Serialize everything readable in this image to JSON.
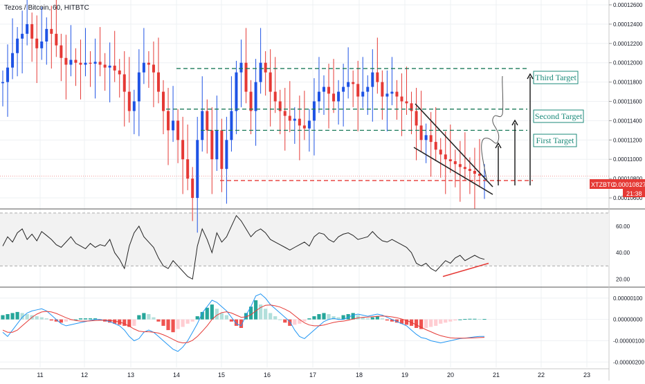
{
  "header": {
    "symbol_line": "Tezos / Bitcoin, 60, HITBTC"
  },
  "price_tag": {
    "symbol": "XTZBTC",
    "price": "0.00010827",
    "countdown": "21:38"
  },
  "annotations": {
    "first": "First Target",
    "second": "Second Target",
    "third": "Third Target"
  },
  "chart_data": [
    {
      "type": "candlestick",
      "pane": "price",
      "title": "Tezos / Bitcoin, 60, HITBTC",
      "x_ticks": [
        "11",
        "12",
        "13",
        "14",
        "15",
        "16",
        "17",
        "18",
        "19",
        "20",
        "21",
        "22",
        "23"
      ],
      "y_ticks": [
        "0.00012600",
        "0.00012400",
        "0.00012200",
        "0.00012000",
        "0.00011800",
        "0.00011600",
        "0.00011400",
        "0.00011200",
        "0.00011000",
        "0.00010800",
        "0.00010600"
      ],
      "ylim": [
        0.000105,
        0.0001265
      ],
      "last_price": 0.00010827,
      "levels": {
        "first_target": 0.000113,
        "second_target": 0.0001152,
        "third_target": 0.0001194,
        "support": 0.0001078
      },
      "path_close": [
        0.000118,
        0.0001195,
        0.000121,
        0.0001225,
        0.000123,
        0.000124,
        0.0001225,
        0.0001215,
        0.0001222,
        0.0001235,
        0.000123,
        0.0001218,
        0.0001205,
        0.0001198,
        0.0001203,
        0.00012,
        0.0001198,
        0.00012,
        0.0001199,
        0.0001201,
        0.0001198,
        0.0001195,
        0.0001197,
        0.0001192,
        0.0001188,
        0.000117,
        0.000115,
        0.000116,
        0.000119,
        0.00012,
        0.0001198,
        0.000119,
        0.000117,
        0.000115,
        0.000113,
        0.000114,
        0.000112,
        0.00011,
        0.000108,
        0.000106,
        0.000112,
        0.000115,
        0.000113,
        0.00011,
        0.000113,
        0.000109,
        0.000112,
        0.000115,
        0.000119,
        0.00012,
        0.000117,
        0.000115,
        0.000118,
        0.00012,
        0.000119,
        0.000117,
        0.000116,
        0.000115,
        0.0001145,
        0.000114,
        0.0001142,
        0.0001135,
        0.0001132,
        0.000114,
        0.000116,
        0.000117,
        0.0001175,
        0.0001168,
        0.000116,
        0.000117,
        0.0001175,
        0.000118,
        0.0001178,
        0.0001165,
        0.000117,
        0.0001175,
        0.000119,
        0.000118,
        0.0001165,
        0.0001168,
        0.000117,
        0.0001165,
        0.000116,
        0.0001158,
        0.000115,
        0.0001135,
        0.000112,
        0.0001125,
        0.0001118,
        0.000111,
        0.0001105,
        0.00011,
        0.0001098,
        0.0001095,
        0.0001092,
        0.000109,
        0.0001088,
        0.0001085,
        0.0001083,
        0.0001083
      ]
    },
    {
      "type": "line",
      "pane": "rsi",
      "y_ticks": [
        "60.00",
        "40.00",
        "20.00"
      ],
      "ylim": [
        15,
        72
      ],
      "bands": [
        70,
        30
      ],
      "values": [
        45,
        52,
        48,
        55,
        58,
        50,
        54,
        49,
        56,
        53,
        50,
        46,
        44,
        48,
        52,
        47,
        45,
        43,
        47,
        44,
        46,
        45,
        50,
        40,
        35,
        28,
        45,
        55,
        60,
        52,
        48,
        44,
        36,
        30,
        28,
        34,
        30,
        26,
        22,
        20,
        45,
        58,
        50,
        40,
        55,
        48,
        52,
        60,
        68,
        64,
        58,
        52,
        56,
        58,
        55,
        50,
        48,
        46,
        44,
        42,
        44,
        46,
        48,
        45,
        52,
        55,
        54,
        50,
        48,
        52,
        54,
        55,
        53,
        50,
        51,
        52,
        56,
        52,
        49,
        48,
        50,
        48,
        46,
        44,
        40,
        32,
        30,
        32,
        28,
        26,
        30,
        34,
        32,
        36,
        38,
        34,
        36,
        38,
        36,
        35
      ]
    },
    {
      "type": "histogram",
      "pane": "macd",
      "y_ticks": [
        "0.00000100",
        "0.00000000",
        "-0.00000100",
        "-0.00000200"
      ],
      "ylim": [
        -2.25e-06,
        1.45e-06
      ],
      "histogram": [
        0.2,
        0.25,
        0.3,
        0.35,
        0.3,
        0.25,
        0.2,
        0.15,
        0.1,
        0.05,
        -0.05,
        -0.1,
        -0.15,
        -0.1,
        -0.05,
        0.0,
        0.05,
        0.05,
        0.05,
        0.05,
        -0.05,
        -0.1,
        -0.15,
        -0.2,
        -0.25,
        -0.3,
        -0.35,
        -0.3,
        0.2,
        0.3,
        0.25,
        0.1,
        -0.1,
        -0.3,
        -0.5,
        -0.6,
        -0.45,
        -0.35,
        -0.2,
        -0.1,
        0.15,
        0.35,
        0.55,
        0.7,
        0.5,
        0.3,
        0.2,
        -0.1,
        -0.3,
        -0.4,
        0.3,
        0.6,
        0.9,
        0.7,
        0.5,
        0.3,
        0.15,
        0.0,
        -0.15,
        -0.3,
        -0.25,
        -0.2,
        -0.1,
        0.05,
        0.15,
        0.25,
        0.3,
        0.25,
        0.15,
        0.1,
        0.2,
        0.25,
        0.3,
        0.2,
        0.1,
        0.05,
        0.1,
        0.15,
        0.05,
        -0.05,
        -0.1,
        -0.15,
        -0.2,
        -0.25,
        -0.3,
        -0.4,
        -0.45,
        -0.4,
        -0.35,
        -0.3,
        -0.2,
        -0.15,
        -0.1,
        -0.05,
        0.0,
        0.02,
        0.03,
        0.03,
        0.02,
        0.02
      ],
      "histogram_scale": 1e-06,
      "macd": [
        -0.6,
        -0.8,
        -0.5,
        -0.2,
        0.1,
        0.3,
        0.4,
        0.45,
        0.5,
        0.4,
        0.2,
        0.0,
        -0.2,
        -0.3,
        -0.25,
        -0.2,
        -0.15,
        -0.1,
        -0.05,
        0.0,
        0.0,
        -0.05,
        -0.1,
        -0.2,
        -0.3,
        -0.5,
        -0.8,
        -1.0,
        -0.9,
        -0.6,
        -0.5,
        -0.6,
        -0.8,
        -1.0,
        -1.2,
        -1.4,
        -1.5,
        -1.3,
        -1.0,
        -0.6,
        -0.2,
        0.3,
        0.6,
        0.9,
        0.8,
        0.6,
        0.4,
        0.1,
        -0.2,
        -0.3,
        0.2,
        0.6,
        1.1,
        1.2,
        1.0,
        0.7,
        0.5,
        0.3,
        0.1,
        -0.1,
        -0.5,
        -0.8,
        -0.9,
        -0.7,
        -0.5,
        -0.3,
        -0.1,
        0.0,
        0.05,
        0.0,
        0.0,
        0.1,
        0.2,
        0.25,
        0.2,
        0.15,
        0.2,
        0.25,
        0.2,
        0.1,
        0.0,
        -0.1,
        -0.2,
        -0.3,
        -0.5,
        -0.7,
        -0.85,
        -0.9,
        -1.0,
        -1.05,
        -1.1,
        -1.05,
        -1.0,
        -0.95,
        -0.9,
        -0.88,
        -0.85,
        -0.82,
        -0.8,
        -0.8
      ],
      "signal": [
        -0.5,
        -0.6,
        -0.6,
        -0.5,
        -0.3,
        -0.1,
        0.1,
        0.25,
        0.35,
        0.38,
        0.35,
        0.28,
        0.18,
        0.08,
        0.0,
        -0.05,
        -0.08,
        -0.08,
        -0.07,
        -0.05,
        -0.04,
        -0.04,
        -0.05,
        -0.08,
        -0.12,
        -0.2,
        -0.32,
        -0.45,
        -0.55,
        -0.58,
        -0.58,
        -0.6,
        -0.64,
        -0.72,
        -0.82,
        -0.94,
        -1.05,
        -1.1,
        -1.08,
        -0.98,
        -0.8,
        -0.56,
        -0.3,
        0.0,
        0.2,
        0.32,
        0.36,
        0.3,
        0.2,
        0.1,
        0.12,
        0.22,
        0.4,
        0.56,
        0.66,
        0.68,
        0.64,
        0.58,
        0.48,
        0.36,
        0.18,
        0.0,
        -0.16,
        -0.26,
        -0.3,
        -0.3,
        -0.26,
        -0.2,
        -0.14,
        -0.1,
        -0.08,
        -0.04,
        0.02,
        0.07,
        0.1,
        0.11,
        0.13,
        0.15,
        0.16,
        0.15,
        0.12,
        0.08,
        0.02,
        -0.05,
        -0.14,
        -0.25,
        -0.37,
        -0.48,
        -0.58,
        -0.68,
        -0.76,
        -0.82,
        -0.86,
        -0.88,
        -0.88,
        -0.88,
        -0.87,
        -0.86,
        -0.85,
        -0.84
      ],
      "line_scale": 1e-06
    }
  ]
}
